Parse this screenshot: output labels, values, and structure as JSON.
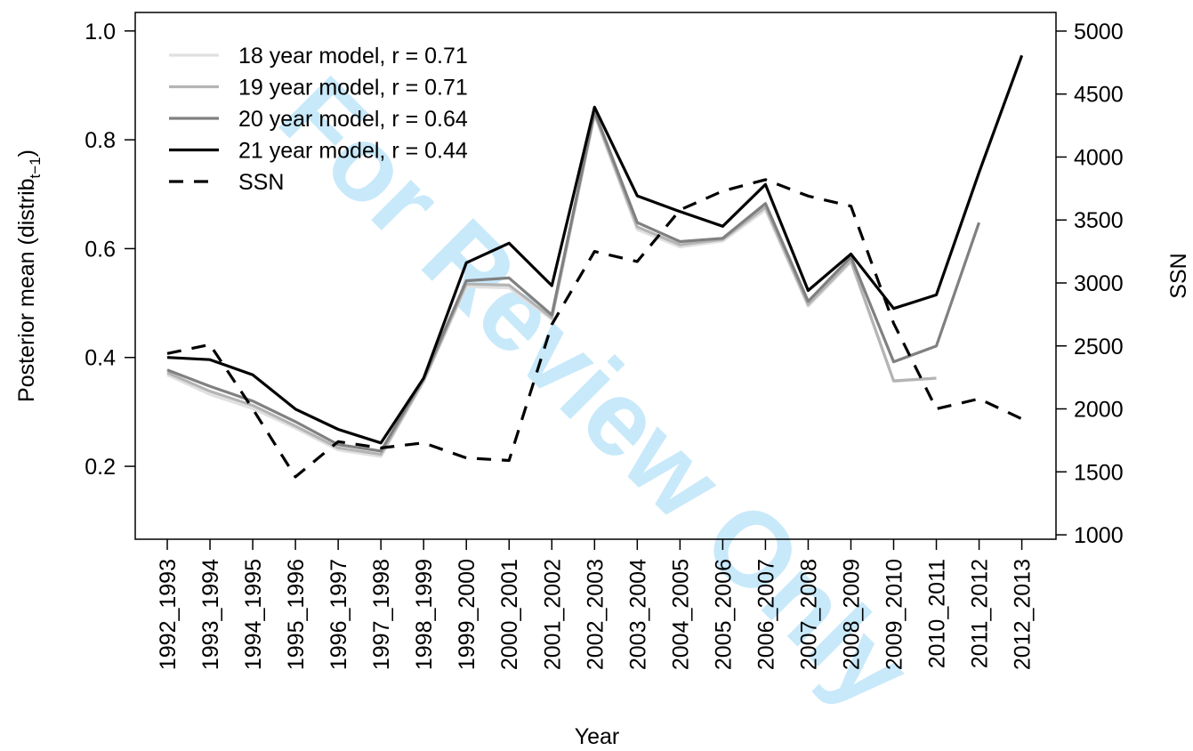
{
  "chart_data": {
    "type": "line",
    "watermark": "For Review Only",
    "xlabel": "Year",
    "ylabel": {
      "text": "Posterior mean (distrib",
      "sub": "t−1",
      "end": ")"
    },
    "y2label": "SSN",
    "categories": [
      "1992_1993",
      "1993_1994",
      "1994_1995",
      "1995_1996",
      "1996_1997",
      "1997_1998",
      "1998_1999",
      "1999_2000",
      "2000_2001",
      "2001_2002",
      "2002_2003",
      "2003_2004",
      "2004_2005",
      "2005_2006",
      "2006_2007",
      "2007_2008",
      "2008_2009",
      "2009_2010",
      "2010_2011",
      "2011_2012",
      "2012_2013"
    ],
    "ylim": [
      0.066,
      1.034
    ],
    "yticks": [
      0.2,
      0.4,
      0.6,
      0.8,
      {
        "value": 1,
        "label": "1.0"
      }
    ],
    "y2lim": [
      965,
      5148
    ],
    "y2ticks": [
      1000,
      1500,
      2000,
      2500,
      3000,
      3500,
      4000,
      4500,
      5000
    ],
    "legend": "top-left",
    "series": [
      {
        "name": "18 year model,  r = 0.71",
        "color": "#e0e0e0",
        "dash": false,
        "values": [
          0.368,
          0.332,
          0.306,
          0.27,
          0.23,
          0.218,
          0.356,
          0.53,
          0.528,
          0.47,
          0.845,
          0.635,
          0.603,
          0.614,
          0.671,
          0.494,
          0.575,
          0.356,
          0.362,
          null,
          null
        ]
      },
      {
        "name": "19 year model,  r = 0.71",
        "color": "#b4b4b4",
        "dash": false,
        "values": [
          0.372,
          0.338,
          0.312,
          0.274,
          0.234,
          0.222,
          0.357,
          0.535,
          0.533,
          0.473,
          0.848,
          0.64,
          0.607,
          0.617,
          0.676,
          0.497,
          0.578,
          0.357,
          0.362,
          null,
          null
        ]
      },
      {
        "name": "20 year model,  r = 0.64",
        "color": "#808080",
        "dash": false,
        "values": [
          0.377,
          0.347,
          0.32,
          0.282,
          0.24,
          0.228,
          0.362,
          0.541,
          0.546,
          0.478,
          0.852,
          0.648,
          0.613,
          0.619,
          0.683,
          0.503,
          0.585,
          0.392,
          0.421,
          0.648,
          null
        ]
      },
      {
        "name": "21 year model,  r = 0.44",
        "color": "#000000",
        "dash": false,
        "values": [
          0.4,
          0.396,
          0.368,
          0.305,
          0.268,
          0.243,
          0.362,
          0.574,
          0.61,
          0.532,
          0.86,
          0.697,
          0.668,
          0.641,
          0.718,
          0.523,
          0.59,
          0.49,
          0.515,
          0.74,
          0.955
        ]
      },
      {
        "name": "SSN",
        "color": "#000000",
        "dash": true,
        "axis": "y2",
        "values": [
          2440,
          2510,
          2000,
          1460,
          1740,
          1690,
          1730,
          1610,
          1590,
          2670,
          3250,
          3170,
          3580,
          3730,
          3820,
          3690,
          3610,
          2680,
          2000,
          2080,
          1920
        ]
      }
    ]
  }
}
